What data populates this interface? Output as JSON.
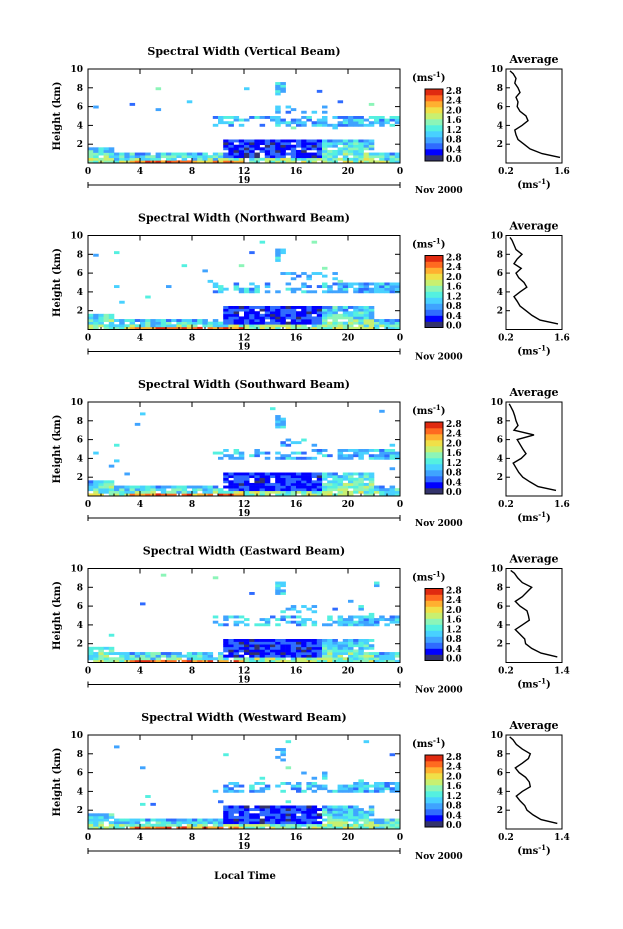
{
  "figure": {
    "xlabel": "Local Time",
    "date_label": "Nov 2000",
    "day_label": "19",
    "colorbar_unit_base": "(ms",
    "colorbar_unit_exp": "-1",
    "colorbar_unit_close": ")",
    "average_title": "Average",
    "colorbar_ticks": [
      "0.0",
      "0.4",
      "0.8",
      "1.2",
      "1.6",
      "2.0",
      "2.4",
      "2.8"
    ],
    "colormap": [
      "#33336b",
      "#0000ff",
      "#2f6bff",
      "#3fa3ff",
      "#48d1ff",
      "#54f0e0",
      "#8cf5b8",
      "#c8f070",
      "#f0e048",
      "#ffb030",
      "#ff6a20",
      "#e02a10"
    ]
  },
  "chart_data": [
    {
      "type": "heatmap",
      "title": "Spectral Width (Vertical Beam)",
      "ylabel": "Height (km)",
      "x_ticks": [
        "0",
        "4",
        "8",
        "12",
        "16",
        "20",
        "0"
      ],
      "y_ticks": [
        "2",
        "4",
        "6",
        "8",
        "10"
      ],
      "xlim": [
        0,
        24
      ],
      "ylim": [
        0,
        10
      ],
      "clim": [
        0,
        3.0
      ],
      "average": {
        "title": "Average",
        "xlim": [
          0.2,
          1.6
        ],
        "x_ticks": [
          "0.2",
          "1.6"
        ],
        "y_ticks": [
          "2",
          "4",
          "6",
          "8",
          "10"
        ],
        "height": [
          0.6,
          1.0,
          1.5,
          2.0,
          2.5,
          3.0,
          3.5,
          4.0,
          4.5,
          5.0,
          5.5,
          6.0,
          6.5,
          7.0,
          7.5,
          8.0,
          8.5,
          9.0,
          9.5,
          9.8
        ],
        "value": [
          1.55,
          1.1,
          0.8,
          0.65,
          0.5,
          0.45,
          0.42,
          0.6,
          0.75,
          0.7,
          0.55,
          0.48,
          0.5,
          0.45,
          0.55,
          0.5,
          0.42,
          0.45,
          0.38,
          0.3
        ]
      }
    },
    {
      "type": "heatmap",
      "title": "Spectral Width (Northward Beam)",
      "ylabel": "Height (km)",
      "x_ticks": [
        "0",
        "4",
        "8",
        "12",
        "16",
        "20",
        "0"
      ],
      "y_ticks": [
        "2",
        "4",
        "6",
        "8",
        "10"
      ],
      "xlim": [
        0,
        24
      ],
      "ylim": [
        0,
        10
      ],
      "clim": [
        0,
        3.0
      ],
      "average": {
        "title": "Average",
        "xlim": [
          0.2,
          1.6
        ],
        "x_ticks": [
          "0.2",
          "1.6"
        ],
        "y_ticks": [
          "2",
          "4",
          "6",
          "8",
          "10"
        ],
        "height": [
          0.6,
          1.0,
          1.5,
          2.0,
          2.5,
          3.0,
          3.5,
          4.0,
          4.5,
          5.0,
          5.5,
          6.0,
          6.5,
          7.0,
          7.5,
          8.0,
          8.5,
          9.0,
          9.5,
          9.8
        ],
        "value": [
          1.5,
          1.05,
          0.85,
          0.7,
          0.55,
          0.48,
          0.4,
          0.55,
          0.72,
          0.65,
          0.52,
          0.45,
          0.58,
          0.4,
          0.48,
          0.6,
          0.45,
          0.4,
          0.35,
          0.3
        ]
      }
    },
    {
      "type": "heatmap",
      "title": "Spectral Width (Southward Beam)",
      "ylabel": "Height (km)",
      "x_ticks": [
        "0",
        "4",
        "8",
        "12",
        "16",
        "20",
        "0"
      ],
      "y_ticks": [
        "2",
        "4",
        "6",
        "8",
        "10"
      ],
      "xlim": [
        0,
        24
      ],
      "ylim": [
        0,
        10
      ],
      "clim": [
        0,
        3.0
      ],
      "average": {
        "title": "Average",
        "xlim": [
          0.2,
          1.6
        ],
        "x_ticks": [
          "0.2",
          "1.6"
        ],
        "y_ticks": [
          "2",
          "4",
          "6",
          "8",
          "10"
        ],
        "height": [
          0.6,
          1.0,
          1.5,
          2.0,
          2.5,
          3.0,
          3.5,
          4.0,
          4.5,
          5.0,
          5.5,
          6.0,
          6.5,
          7.0,
          7.5,
          8.0,
          8.5,
          9.0,
          9.5,
          9.8
        ],
        "value": [
          1.45,
          1.0,
          0.8,
          0.62,
          0.52,
          0.45,
          0.38,
          0.58,
          0.7,
          0.62,
          0.55,
          0.48,
          0.9,
          0.4,
          0.5,
          0.45,
          0.42,
          0.38,
          0.32,
          0.28
        ]
      }
    },
    {
      "type": "heatmap",
      "title": "Spectral Width (Eastward Beam)",
      "ylabel": "Height (km)",
      "x_ticks": [
        "0",
        "4",
        "8",
        "12",
        "16",
        "20",
        "0"
      ],
      "y_ticks": [
        "2",
        "4",
        "6",
        "8",
        "10"
      ],
      "xlim": [
        0,
        24
      ],
      "ylim": [
        0,
        10
      ],
      "clim": [
        0,
        3.0
      ],
      "average": {
        "title": "Average",
        "xlim": [
          0.2,
          1.4
        ],
        "x_ticks": [
          "0.2",
          "1.4"
        ],
        "y_ticks": [
          "2",
          "4",
          "6",
          "8",
          "10"
        ],
        "height": [
          0.6,
          1.0,
          1.5,
          2.0,
          2.5,
          3.0,
          3.5,
          4.0,
          4.5,
          5.0,
          5.5,
          6.0,
          6.5,
          7.0,
          7.5,
          8.0,
          8.5,
          9.0,
          9.5,
          9.8
        ],
        "value": [
          1.3,
          0.95,
          0.75,
          0.62,
          0.6,
          0.5,
          0.4,
          0.55,
          0.7,
          0.68,
          0.65,
          0.5,
          0.4,
          0.55,
          0.65,
          0.75,
          0.55,
          0.45,
          0.38,
          0.3
        ]
      }
    },
    {
      "type": "heatmap",
      "title": "Spectral Width (Westward Beam)",
      "ylabel": "Height (km)",
      "x_ticks": [
        "0",
        "4",
        "8",
        "12",
        "16",
        "20",
        "0"
      ],
      "y_ticks": [
        "2",
        "4",
        "6",
        "8",
        "10"
      ],
      "xlim": [
        0,
        24
      ],
      "ylim": [
        0,
        10
      ],
      "clim": [
        0,
        3.0
      ],
      "average": {
        "title": "Average",
        "xlim": [
          0.2,
          1.4
        ],
        "x_ticks": [
          "0.2",
          "1.4"
        ],
        "y_ticks": [
          "2",
          "4",
          "6",
          "8",
          "10"
        ],
        "height": [
          0.6,
          1.0,
          1.5,
          2.0,
          2.5,
          3.0,
          3.5,
          4.0,
          4.5,
          5.0,
          5.5,
          6.0,
          6.5,
          7.0,
          7.5,
          8.0,
          8.5,
          9.0,
          9.5,
          9.8
        ],
        "value": [
          1.3,
          0.95,
          0.78,
          0.65,
          0.6,
          0.5,
          0.42,
          0.55,
          0.72,
          0.7,
          0.62,
          0.48,
          0.4,
          0.55,
          0.68,
          0.72,
          0.55,
          0.42,
          0.35,
          0.28
        ]
      }
    }
  ]
}
